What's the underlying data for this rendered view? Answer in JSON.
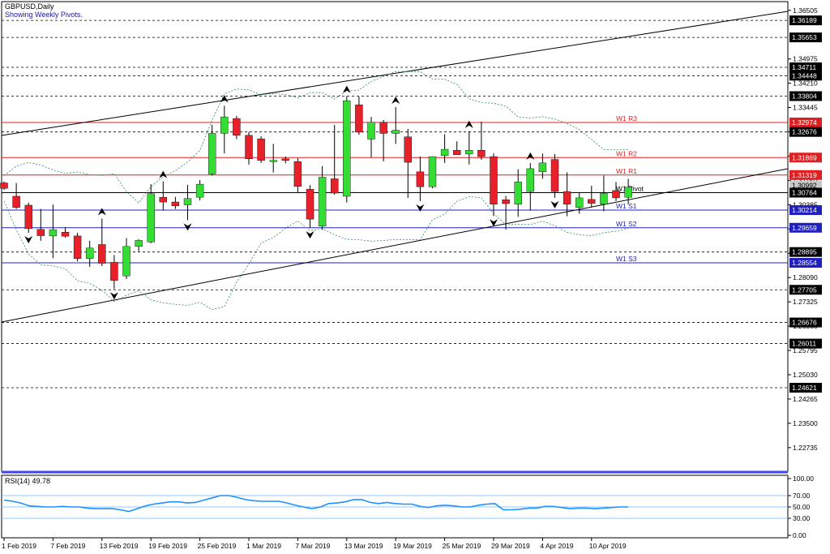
{
  "header": {
    "symbol": "GBPUSD,Daily",
    "subtitle": "Showing Weekly Pivots."
  },
  "rsi": {
    "label": "RSI(14) 49.78",
    "levels": [
      "100.00",
      "70.00",
      "50.00",
      "30.00",
      "0.00"
    ],
    "values": [
      62,
      60,
      57,
      52,
      51,
      50,
      50,
      51,
      50,
      50,
      48,
      47,
      47,
      47,
      45,
      42,
      47,
      52,
      55,
      57,
      59,
      59,
      57,
      58,
      62,
      66,
      70,
      70,
      67,
      63,
      61,
      60,
      60,
      60,
      57,
      53,
      50,
      47,
      50,
      56,
      57,
      59,
      63,
      63,
      58,
      56,
      58,
      56,
      55,
      55,
      51,
      49,
      52,
      53,
      52,
      50,
      50,
      53,
      55,
      56,
      45,
      45,
      46,
      48,
      48,
      51,
      51,
      49,
      47,
      48,
      48,
      47,
      48,
      49,
      50,
      50
    ]
  },
  "price_axis": {
    "ticks": [
      "1.36505",
      "1.34975",
      "1.34210",
      "1.33445",
      "1.32680",
      "1.31915",
      "1.31150",
      "1.30385",
      "1.29620",
      "1.28855",
      "1.28090",
      "1.27325",
      "1.26560",
      "1.25795",
      "1.25030",
      "1.24265",
      "1.23500",
      "1.22735"
    ],
    "highlighted": [
      "1.36189",
      "1.35653",
      "1.34711",
      "1.34448",
      "1.33804",
      "1.32974",
      "1.32676",
      "1.31869",
      "1.31319",
      "1.30992",
      "1.30764",
      "1.30214",
      "1.29659",
      "1.28895",
      "1.28554",
      "1.27705",
      "1.26676",
      "1.26011",
      "1.24621"
    ]
  },
  "time_axis": [
    "1 Feb 2019",
    "7 Feb 2019",
    "13 Feb 2019",
    "19 Feb 2019",
    "25 Feb 2019",
    "1 Mar 2019",
    "7 Mar 2019",
    "13 Mar 2019",
    "19 Mar 2019",
    "25 Mar 2019",
    "29 Mar 2019",
    "4 Apr 2019",
    "10 Apr 2019"
  ],
  "pivots": [
    {
      "label": "W1 R3",
      "value": 1.32974,
      "color": "#e02020"
    },
    {
      "label": "W1 R2",
      "value": 1.31869,
      "color": "#e02020"
    },
    {
      "label": "W1 R1",
      "value": 1.31319,
      "color": "#e02020"
    },
    {
      "label": "W1 Pivot",
      "value": 1.30764,
      "color": "#000000"
    },
    {
      "label": "W1 S1",
      "value": 1.30214,
      "color": "#2020c0"
    },
    {
      "label": "W1 S2",
      "value": 1.29659,
      "color": "#2020c0"
    },
    {
      "label": "W1 S3",
      "value": 1.28554,
      "color": "#2020c0"
    }
  ],
  "levels": [
    1.36189,
    1.35653,
    1.34711,
    1.34448,
    1.33804,
    1.32676,
    1.28895,
    1.27705,
    1.26676,
    1.26011,
    1.24621
  ],
  "colors": {
    "bull": "#33dd33",
    "bear": "#e8202a",
    "grid": "#000000",
    "band": "#2e8b57",
    "rsi": "#1e90ff",
    "sep": "#4040ff"
  },
  "chart_data": {
    "type": "candlestick",
    "title": "GBPUSD,Daily",
    "ylim": [
      1.2199,
      1.3678
    ],
    "candles": [
      {
        "o": 1.3107,
        "h": 1.3112,
        "l": 1.3085,
        "c": 1.309
      },
      {
        "o": 1.3065,
        "h": 1.3107,
        "l": 1.3025,
        "c": 1.303
      },
      {
        "o": 1.3037,
        "h": 1.3045,
        "l": 1.295,
        "c": 1.2963
      },
      {
        "o": 1.2961,
        "h": 1.3025,
        "l": 1.2925,
        "c": 1.2941
      },
      {
        "o": 1.294,
        "h": 1.3039,
        "l": 1.287,
        "c": 1.296
      },
      {
        "o": 1.2952,
        "h": 1.2968,
        "l": 1.2935,
        "c": 1.2939
      },
      {
        "o": 1.294,
        "h": 1.295,
        "l": 1.286,
        "c": 1.2869
      },
      {
        "o": 1.2869,
        "h": 1.2925,
        "l": 1.2843,
        "c": 1.2902
      },
      {
        "o": 1.2913,
        "h": 1.2995,
        "l": 1.2845,
        "c": 1.2854
      },
      {
        "o": 1.2857,
        "h": 1.288,
        "l": 1.2773,
        "c": 1.28
      },
      {
        "o": 1.2814,
        "h": 1.2933,
        "l": 1.2804,
        "c": 1.2907
      },
      {
        "o": 1.2907,
        "h": 1.293,
        "l": 1.2892,
        "c": 1.2926
      },
      {
        "o": 1.2921,
        "h": 1.3103,
        "l": 1.2917,
        "c": 1.3073
      },
      {
        "o": 1.3062,
        "h": 1.3112,
        "l": 1.302,
        "c": 1.3047
      },
      {
        "o": 1.3047,
        "h": 1.3063,
        "l": 1.3025,
        "c": 1.3035
      },
      {
        "o": 1.3038,
        "h": 1.3101,
        "l": 1.299,
        "c": 1.3058
      },
      {
        "o": 1.3062,
        "h": 1.3116,
        "l": 1.3052,
        "c": 1.3103
      },
      {
        "o": 1.3135,
        "h": 1.329,
        "l": 1.313,
        "c": 1.3263
      },
      {
        "o": 1.3263,
        "h": 1.335,
        "l": 1.32,
        "c": 1.3315
      },
      {
        "o": 1.331,
        "h": 1.3318,
        "l": 1.3245,
        "c": 1.3257
      },
      {
        "o": 1.3257,
        "h": 1.3268,
        "l": 1.3165,
        "c": 1.3183
      },
      {
        "o": 1.3246,
        "h": 1.3254,
        "l": 1.317,
        "c": 1.3178
      },
      {
        "o": 1.3175,
        "h": 1.323,
        "l": 1.314,
        "c": 1.3178
      },
      {
        "o": 1.3183,
        "h": 1.319,
        "l": 1.3169,
        "c": 1.3178
      },
      {
        "o": 1.3174,
        "h": 1.3185,
        "l": 1.3075,
        "c": 1.3096
      },
      {
        "o": 1.3087,
        "h": 1.31,
        "l": 1.2965,
        "c": 1.2993
      },
      {
        "o": 1.2971,
        "h": 1.316,
        "l": 1.296,
        "c": 1.3125
      },
      {
        "o": 1.312,
        "h": 1.329,
        "l": 1.307,
        "c": 1.3075
      },
      {
        "o": 1.3065,
        "h": 1.338,
        "l": 1.3045,
        "c": 1.3366
      },
      {
        "o": 1.3353,
        "h": 1.3379,
        "l": 1.3259,
        "c": 1.3267
      },
      {
        "o": 1.3245,
        "h": 1.3315,
        "l": 1.3188,
        "c": 1.3298
      },
      {
        "o": 1.3298,
        "h": 1.3305,
        "l": 1.3175,
        "c": 1.3263
      },
      {
        "o": 1.3263,
        "h": 1.3346,
        "l": 1.323,
        "c": 1.3273
      },
      {
        "o": 1.3252,
        "h": 1.3277,
        "l": 1.306,
        "c": 1.3172
      },
      {
        "o": 1.3142,
        "h": 1.319,
        "l": 1.305,
        "c": 1.3095
      },
      {
        "o": 1.3095,
        "h": 1.319,
        "l": 1.309,
        "c": 1.319
      },
      {
        "o": 1.3193,
        "h": 1.326,
        "l": 1.317,
        "c": 1.3213
      },
      {
        "o": 1.321,
        "h": 1.3238,
        "l": 1.32,
        "c": 1.3196
      },
      {
        "o": 1.3198,
        "h": 1.327,
        "l": 1.3165,
        "c": 1.321
      },
      {
        "o": 1.321,
        "h": 1.33,
        "l": 1.318,
        "c": 1.319
      },
      {
        "o": 1.319,
        "h": 1.32,
        "l": 1.3003,
        "c": 1.304
      },
      {
        "o": 1.3054,
        "h": 1.3066,
        "l": 1.296,
        "c": 1.3042
      },
      {
        "o": 1.304,
        "h": 1.315,
        "l": 1.3,
        "c": 1.311
      },
      {
        "o": 1.308,
        "h": 1.317,
        "l": 1.302,
        "c": 1.3152
      },
      {
        "o": 1.3142,
        "h": 1.32,
        "l": 1.312,
        "c": 1.317
      },
      {
        "o": 1.3181,
        "h": 1.3198,
        "l": 1.306,
        "c": 1.308
      },
      {
        "o": 1.308,
        "h": 1.314,
        "l": 1.3002,
        "c": 1.304
      },
      {
        "o": 1.303,
        "h": 1.3075,
        "l": 1.301,
        "c": 1.306
      },
      {
        "o": 1.3055,
        "h": 1.3098,
        "l": 1.303,
        "c": 1.3043
      },
      {
        "o": 1.304,
        "h": 1.313,
        "l": 1.3018,
        "c": 1.3074
      },
      {
        "o": 1.3083,
        "h": 1.311,
        "l": 1.305,
        "c": 1.306
      },
      {
        "o": 1.3062,
        "h": 1.312,
        "l": 1.304,
        "c": 1.3094
      }
    ],
    "xlabel": "",
    "ylabel": ""
  }
}
